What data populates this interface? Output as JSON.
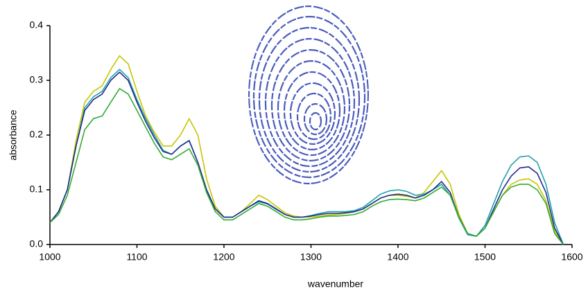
{
  "chart_data": {
    "type": "line",
    "x_label": "wavenumber",
    "y_label": "absorbance",
    "x": [
      1000,
      1010,
      1020,
      1030,
      1040,
      1050,
      1060,
      1070,
      1080,
      1090,
      1100,
      1110,
      1120,
      1130,
      1140,
      1150,
      1160,
      1170,
      1180,
      1190,
      1200,
      1210,
      1220,
      1230,
      1240,
      1250,
      1260,
      1270,
      1280,
      1290,
      1300,
      1310,
      1320,
      1330,
      1340,
      1350,
      1360,
      1370,
      1380,
      1390,
      1400,
      1410,
      1420,
      1430,
      1440,
      1450,
      1460,
      1470,
      1480,
      1490,
      1500,
      1510,
      1520,
      1530,
      1540,
      1550,
      1560,
      1570,
      1580,
      1590
    ],
    "series": [
      {
        "color": "#c8c400",
        "values": [
          0.04,
          0.06,
          0.1,
          0.19,
          0.26,
          0.28,
          0.29,
          0.32,
          0.345,
          0.33,
          0.28,
          0.235,
          0.205,
          0.18,
          0.18,
          0.2,
          0.23,
          0.2,
          0.12,
          0.07,
          0.05,
          0.05,
          0.06,
          0.075,
          0.09,
          0.082,
          0.07,
          0.058,
          0.052,
          0.05,
          0.05,
          0.052,
          0.054,
          0.055,
          0.057,
          0.06,
          0.065,
          0.075,
          0.085,
          0.09,
          0.09,
          0.088,
          0.085,
          0.095,
          0.115,
          0.135,
          0.11,
          0.055,
          0.02,
          0.015,
          0.03,
          0.06,
          0.09,
          0.11,
          0.118,
          0.12,
          0.11,
          0.08,
          0.025,
          0.0
        ]
      },
      {
        "color": "#20a0b0",
        "values": [
          0.04,
          0.06,
          0.1,
          0.18,
          0.25,
          0.27,
          0.28,
          0.305,
          0.32,
          0.305,
          0.265,
          0.23,
          0.2,
          0.172,
          0.165,
          0.18,
          0.19,
          0.15,
          0.1,
          0.065,
          0.05,
          0.05,
          0.06,
          0.07,
          0.078,
          0.074,
          0.064,
          0.055,
          0.05,
          0.05,
          0.053,
          0.057,
          0.06,
          0.06,
          0.06,
          0.062,
          0.068,
          0.08,
          0.092,
          0.098,
          0.1,
          0.097,
          0.09,
          0.092,
          0.1,
          0.11,
          0.09,
          0.048,
          0.018,
          0.015,
          0.035,
          0.075,
          0.115,
          0.145,
          0.16,
          0.162,
          0.15,
          0.11,
          0.04,
          0.0
        ]
      },
      {
        "color": "#1f2a8a",
        "values": [
          0.04,
          0.06,
          0.1,
          0.18,
          0.245,
          0.265,
          0.275,
          0.3,
          0.315,
          0.3,
          0.26,
          0.225,
          0.195,
          0.17,
          0.165,
          0.18,
          0.19,
          0.15,
          0.1,
          0.065,
          0.05,
          0.05,
          0.06,
          0.07,
          0.08,
          0.075,
          0.065,
          0.055,
          0.05,
          0.05,
          0.052,
          0.055,
          0.057,
          0.057,
          0.058,
          0.06,
          0.065,
          0.075,
          0.085,
          0.09,
          0.092,
          0.09,
          0.085,
          0.09,
          0.1,
          0.115,
          0.095,
          0.05,
          0.02,
          0.015,
          0.03,
          0.065,
          0.1,
          0.125,
          0.14,
          0.142,
          0.13,
          0.095,
          0.03,
          0.0
        ]
      },
      {
        "color": "#33aa33",
        "values": [
          0.04,
          0.055,
          0.09,
          0.15,
          0.21,
          0.23,
          0.235,
          0.26,
          0.285,
          0.275,
          0.245,
          0.215,
          0.185,
          0.16,
          0.155,
          0.165,
          0.175,
          0.145,
          0.095,
          0.06,
          0.045,
          0.045,
          0.055,
          0.065,
          0.075,
          0.07,
          0.06,
          0.05,
          0.045,
          0.045,
          0.047,
          0.05,
          0.052,
          0.052,
          0.053,
          0.055,
          0.06,
          0.07,
          0.078,
          0.082,
          0.083,
          0.082,
          0.08,
          0.085,
          0.095,
          0.105,
          0.09,
          0.05,
          0.02,
          0.015,
          0.03,
          0.06,
          0.09,
          0.105,
          0.11,
          0.11,
          0.1,
          0.075,
          0.02,
          0.0
        ]
      }
    ],
    "xlim": [
      1000,
      1600
    ],
    "xticks": [
      1000,
      1100,
      1200,
      1300,
      1400,
      1500,
      1600
    ],
    "ylim": [
      0,
      0.4
    ],
    "yticks": [
      {
        "value": 0,
        "label": "0.0"
      },
      0.1,
      0.2,
      0.3,
      0.4
    ],
    "grid": false
  }
}
